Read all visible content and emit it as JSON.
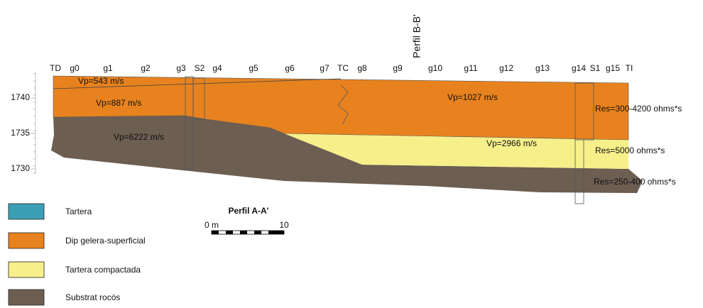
{
  "profile_title": "Perfil B-B'",
  "point_labels": [
    "TD",
    "g0",
    "g1",
    "g2",
    "g3",
    "S2",
    "g4",
    "g5",
    "g6",
    "g7",
    "TC",
    "g8",
    "g9",
    "g10",
    "g11",
    "g12",
    "g13",
    "g14",
    "S1",
    "g15",
    "TI"
  ],
  "elevation_ticks": [
    1740,
    1735,
    1730
  ],
  "velocity_labels": [
    "Vp=543 m/s",
    "Vp=887 m/s",
    "Vp=1027 m/s",
    "Vp=6222 m/s",
    "Vp=2966 m/s"
  ],
  "resistivity_labels": [
    "Res=300-4200 ohms*s",
    "Res=5000 ohms*s",
    "Res=250-400 ohms*s"
  ],
  "legend": [
    {
      "label": "Tartera",
      "color": "#3a9fb5"
    },
    {
      "label": "Dip gelera-superficial",
      "color": "#e8821e"
    },
    {
      "label": "Tartera compactada",
      "color": "#f7ef8a"
    },
    {
      "label": "Substrat rocós",
      "color": "#6d5e52"
    }
  ],
  "scale_bar": {
    "title": "Perfil A-A'",
    "start_label": "0 m",
    "end_label": "10"
  }
}
